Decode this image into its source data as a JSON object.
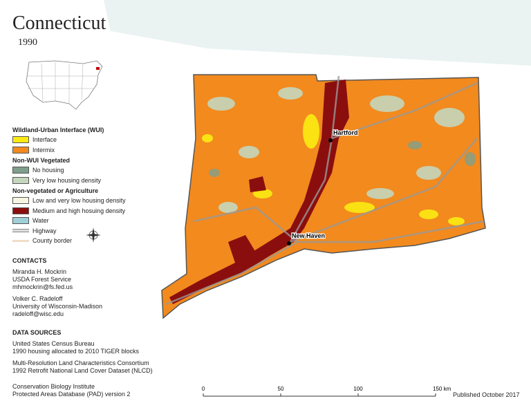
{
  "header": {
    "title": "Connecticut",
    "year": "1990"
  },
  "legend": {
    "sections": [
      {
        "title": "Wildland-Urban Interface (WUI)",
        "items": [
          {
            "label": "Interface",
            "color": "#fbeb12"
          },
          {
            "label": "Intermix",
            "color": "#f28a1e"
          }
        ]
      },
      {
        "title": "Non-WUI Vegetated",
        "items": [
          {
            "label": "No housing",
            "color": "#7f9f8c"
          },
          {
            "label": "Very low housing density",
            "color": "#c5d6bc"
          }
        ]
      },
      {
        "title": "Non-vegetated or Agriculture",
        "items": [
          {
            "label": "Low and very low housing density",
            "color": "#f7f4e2"
          },
          {
            "label": "Medium and high hosuing density",
            "color": "#8b0e0e"
          },
          {
            "label": "Water",
            "color": "#9fd0d8"
          }
        ]
      }
    ],
    "lines": [
      {
        "label": "Highway"
      },
      {
        "label": "County border"
      }
    ]
  },
  "contacts": {
    "title": "CONTACTS",
    "people": [
      [
        "Miranda H. Mockrin",
        "USDA Forest Service",
        "mhmockrin@fs.fed.us"
      ],
      [
        "Volker C. Radeloff",
        "University of Wisconsin-Madison",
        "radeloff@wisc.edu"
      ]
    ]
  },
  "data_sources": {
    "title": "DATA SOURCES",
    "entries": [
      [
        "United States Census Bureau",
        "1990 housing allocated to 2010 TIGER blocks"
      ],
      [
        "Multi-Resolution Land Characteristics Consortium",
        "1992 Retrofit National Land Cover Dataset (NLCD)"
      ],
      [
        "Conservation Biology Institute",
        "Protected Areas Database (PAD) version 2"
      ]
    ]
  },
  "map": {
    "cities": [
      {
        "label": "Hartford"
      },
      {
        "label": "New Haven"
      }
    ],
    "scale": {
      "labels": [
        "0",
        "50",
        "100",
        "150 km"
      ]
    }
  },
  "footer": {
    "published": "Published October 2017"
  }
}
